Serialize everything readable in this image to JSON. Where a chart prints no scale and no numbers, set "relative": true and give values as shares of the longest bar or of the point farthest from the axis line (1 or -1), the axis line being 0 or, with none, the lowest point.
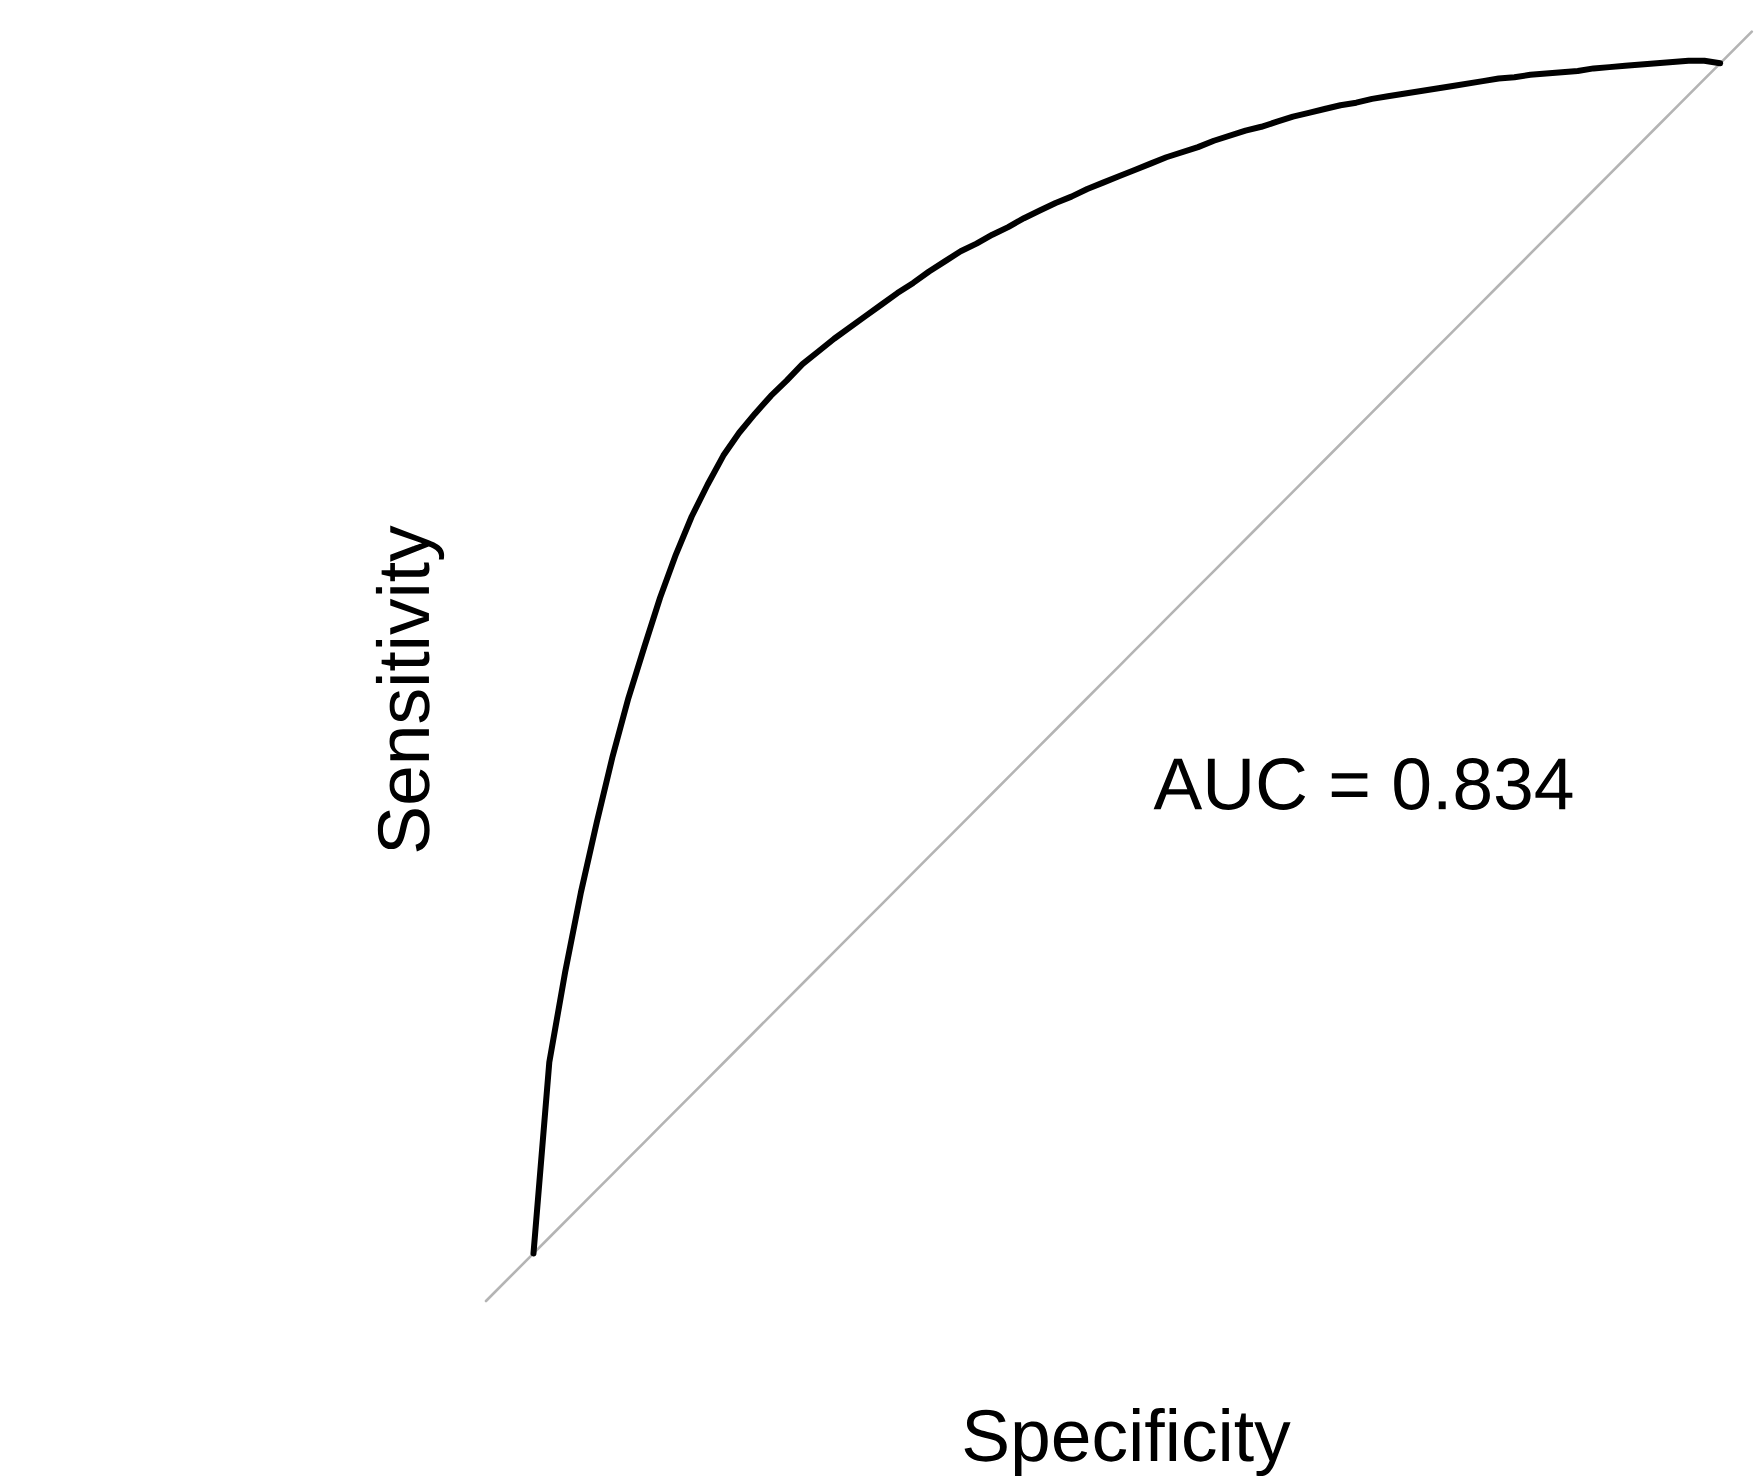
{
  "chart_data": {
    "type": "line",
    "relative": true,
    "xlabel": "Specificity",
    "ylabel": "Sensitivity",
    "annotations": [
      "AUC = 0.834"
    ],
    "categories": [
      null,
      null,
      null,
      null,
      null,
      null,
      null,
      null,
      null,
      null,
      null,
      null,
      null,
      null,
      null,
      null,
      null,
      null,
      null,
      null,
      null,
      null,
      null,
      null,
      null,
      null,
      null,
      null,
      null,
      null,
      null,
      null,
      null,
      null,
      null,
      null,
      null,
      null,
      null,
      null,
      null,
      null,
      null,
      null,
      null,
      null,
      null,
      null,
      null,
      null,
      null,
      null,
      null,
      null,
      null,
      null,
      null,
      null,
      null,
      null,
      null,
      null,
      null,
      null,
      null,
      null,
      null,
      null,
      null,
      null,
      null,
      null,
      null,
      null,
      null,
      null,
      null,
      null,
      null,
      null,
      null
    ],
    "series": [
      {
        "color": "#b4b4b4",
        "values": [
          0,
          0.0125,
          0.025,
          0.0375,
          0.05,
          0.0625,
          0.075,
          0.0875,
          0.1,
          0.1125,
          0.125,
          0.1375,
          0.15,
          0.1625,
          0.175,
          0.1875,
          0.2,
          0.2125,
          0.225,
          0.2375,
          0.25,
          0.2625,
          0.275,
          0.2875,
          0.3,
          0.3125,
          0.325,
          0.3375,
          0.35,
          0.3625,
          0.375,
          0.3875,
          0.4,
          0.4125,
          0.425,
          0.4375,
          0.45,
          0.4625,
          0.475,
          0.4875,
          0.5,
          0.5125,
          0.525,
          0.5375,
          0.55,
          0.5625,
          0.575,
          0.5875,
          0.6,
          0.6125,
          0.625,
          0.6375,
          0.65,
          0.6625,
          0.675,
          0.6875,
          0.7,
          0.7125,
          0.725,
          0.7375,
          0.75,
          0.7625,
          0.775,
          0.7875,
          0.8,
          0.8125,
          0.825,
          0.8375,
          0.85,
          0.8625,
          0.875,
          0.8875,
          0.9,
          0.9125,
          0.925,
          0.9375,
          0.95,
          0.9625,
          0.975,
          0.9875,
          1
        ]
      },
      {
        "color": "#000000",
        "values": [
          null,
          null,
          null,
          0.0375,
          0.188,
          0.259,
          0.322,
          0.377,
          0.429,
          0.475,
          0.515,
          0.554,
          0.588,
          0.618,
          0.643,
          0.666,
          0.684,
          0.699,
          0.713,
          0.725,
          0.738,
          0.748,
          0.758,
          0.767,
          0.776,
          0.785,
          0.794,
          0.802,
          0.811,
          0.819,
          0.827,
          0.833,
          0.84,
          0.846,
          0.853,
          0.859,
          0.865,
          0.87,
          0.876,
          0.881,
          0.886,
          0.891,
          0.896,
          0.901,
          0.905,
          0.909,
          0.914,
          0.918,
          0.922,
          0.925,
          0.929,
          0.933,
          0.936,
          0.939,
          0.942,
          0.944,
          0.947,
          0.949,
          0.951,
          0.953,
          0.955,
          0.957,
          0.959,
          0.961,
          0.963,
          0.964,
          0.966,
          0.967,
          0.968,
          0.969,
          0.971,
          0.972,
          0.973,
          0.974,
          0.975,
          0.976,
          0.977,
          0.977,
          0.975,
          null,
          null
        ]
      }
    ]
  }
}
